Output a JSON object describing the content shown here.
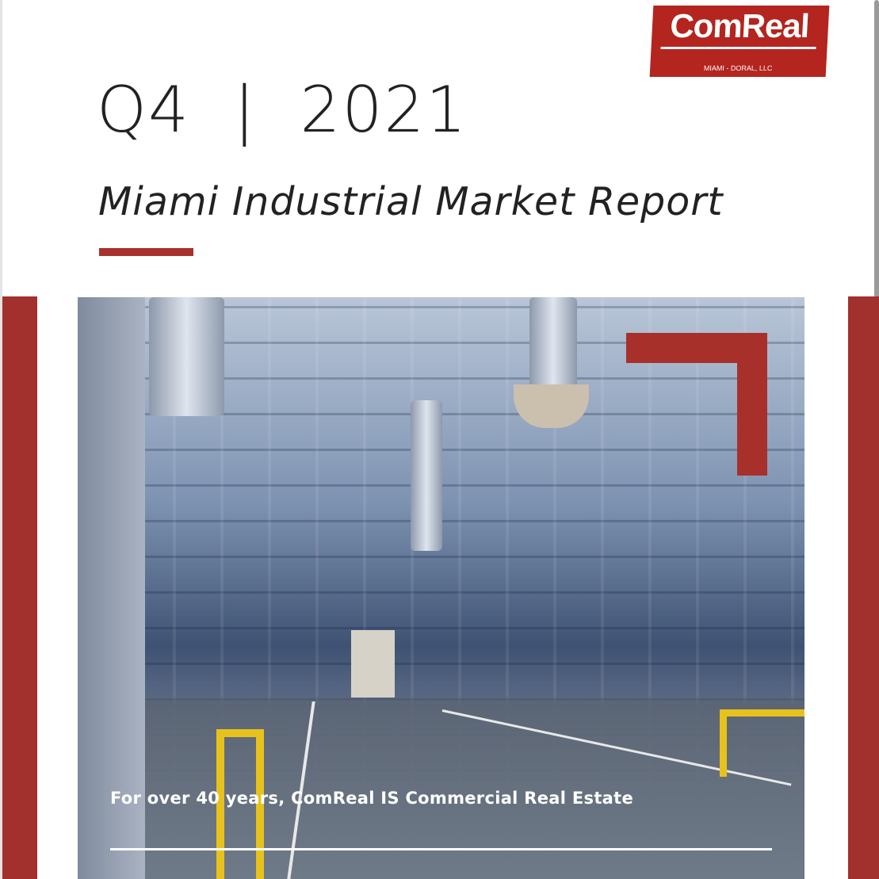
{
  "logo": {
    "name": "ComReal",
    "subtitle": "MIAMI - DORAL, LLC"
  },
  "cover": {
    "quarter": "Q4  |  2021",
    "title": "Miami Industrial Market Report",
    "tagline": "For over 40 years, ComReal IS Commercial Real Estate"
  },
  "colors": {
    "accent": "#a8302b",
    "logo": "#b3251e"
  }
}
